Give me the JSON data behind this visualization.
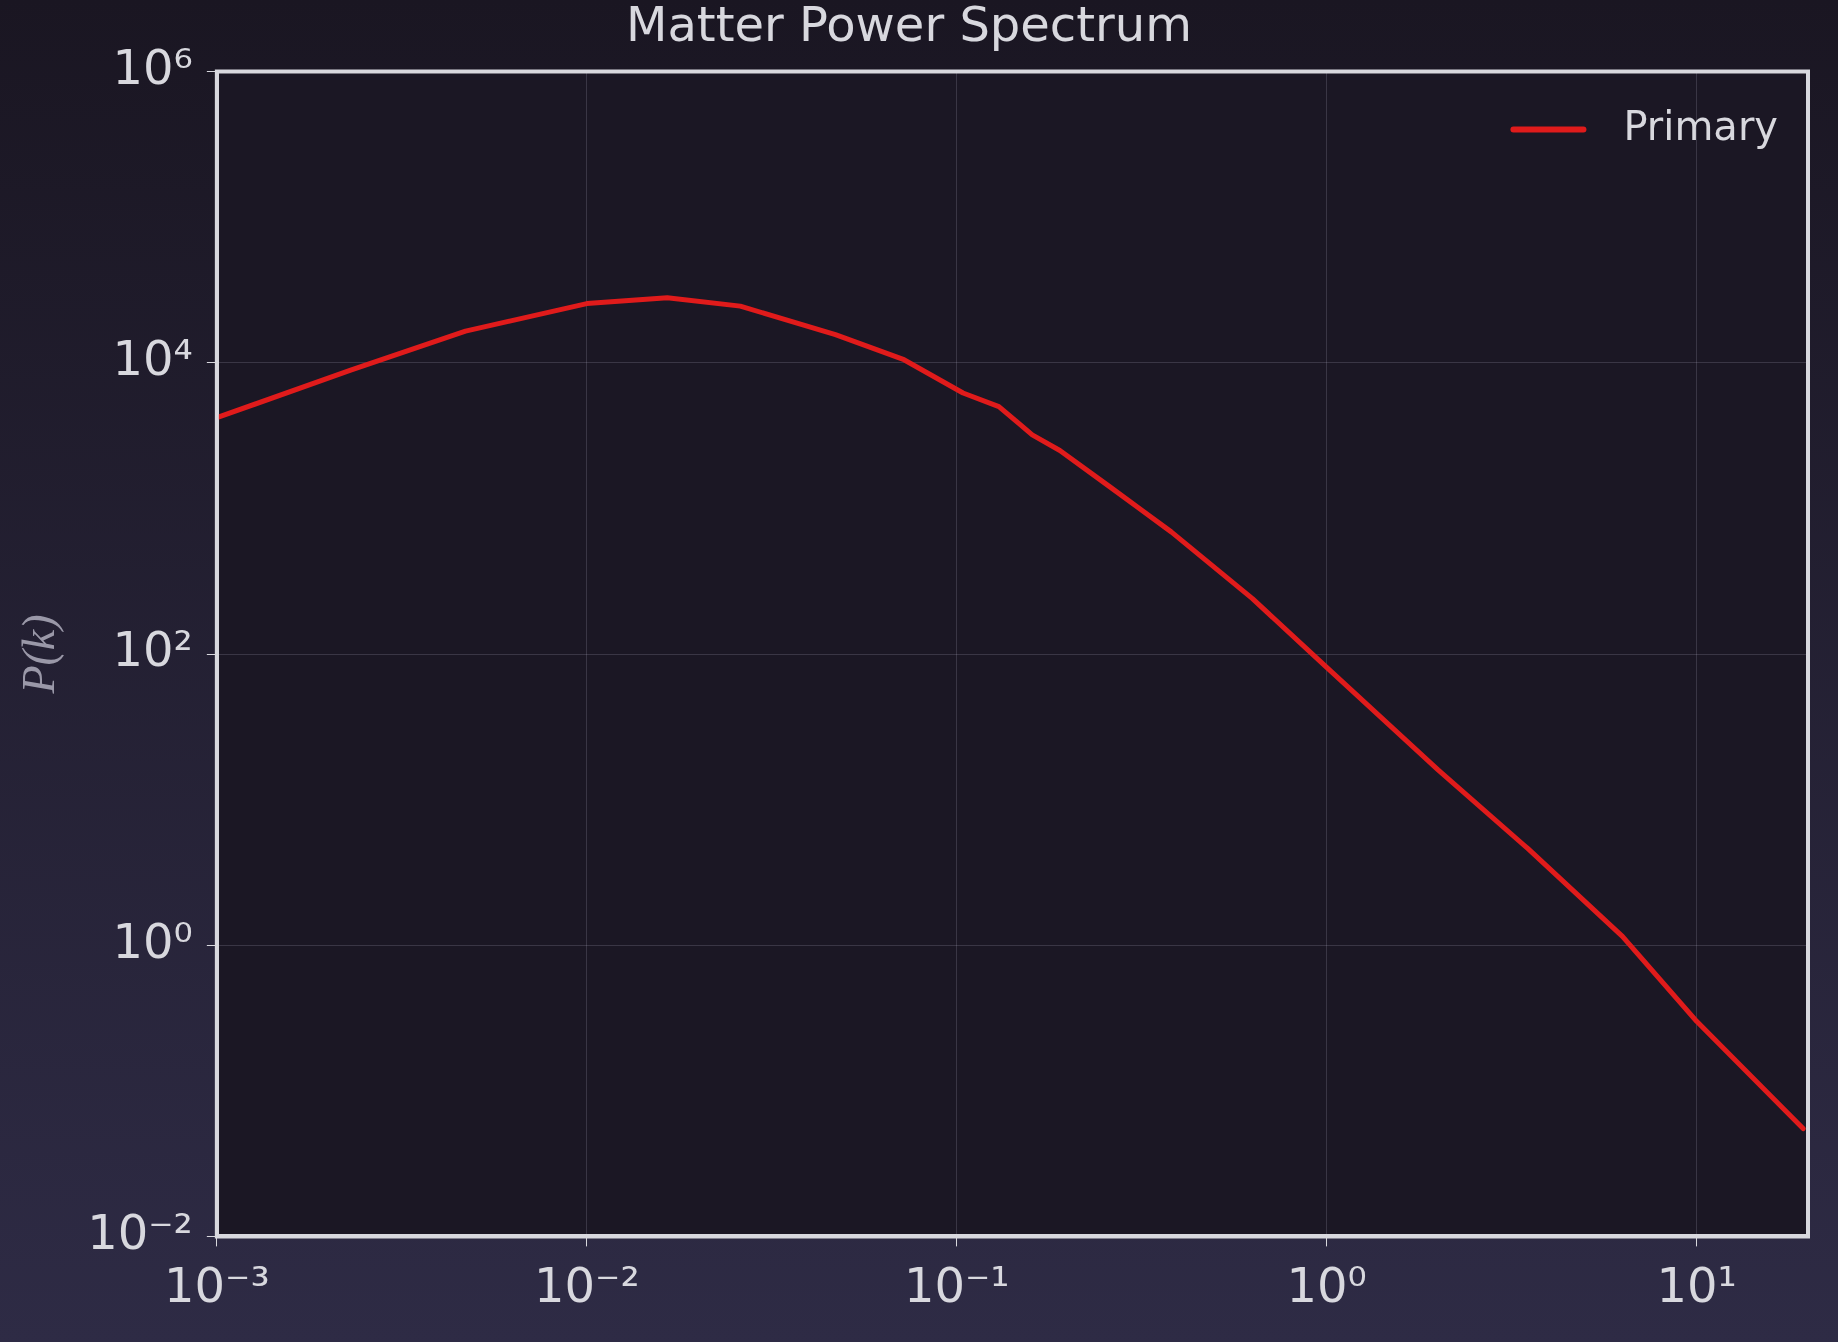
{
  "chart_data": {
    "type": "line",
    "title": "Matter Power Spectrum",
    "ylabel": "P(k)",
    "log": "xy",
    "grid": true,
    "legend": "top right",
    "marker": "none",
    "line_style": "solid",
    "xlim": [
      0.001,
      20
    ],
    "ylim": [
      0.01,
      1000000
    ],
    "xticks": [
      {
        "value": 0.001,
        "label": "10⁻³"
      },
      {
        "value": 0.01,
        "label": "10⁻²"
      },
      {
        "value": 0.1,
        "label": "10⁻¹"
      },
      {
        "value": 1,
        "label": "10⁰"
      },
      {
        "value": 10,
        "label": "10¹"
      }
    ],
    "yticks": [
      {
        "value": 0.01,
        "label": "10⁻²"
      },
      {
        "value": 1,
        "label": "10⁰"
      },
      {
        "value": 100,
        "label": "10²"
      },
      {
        "value": 10000,
        "label": "10⁴"
      },
      {
        "value": 1000000,
        "label": "10⁶"
      }
    ],
    "series": [
      {
        "name": "Primary",
        "color": "#e01b1b",
        "x": [
          0.001,
          0.0023,
          0.0047,
          0.01,
          0.0165,
          0.026,
          0.047,
          0.072,
          0.104,
          0.13,
          0.16,
          0.19,
          0.26,
          0.38,
          0.63,
          1,
          2,
          3.5,
          6.3,
          10,
          19.4
        ],
        "values": [
          4200,
          8900,
          16500,
          25500,
          28000,
          24500,
          15600,
          10500,
          6200,
          5000,
          3200,
          2500,
          1400,
          690,
          240,
          81,
          16,
          4.6,
          1.15,
          0.3,
          0.055
        ]
      }
    ]
  }
}
